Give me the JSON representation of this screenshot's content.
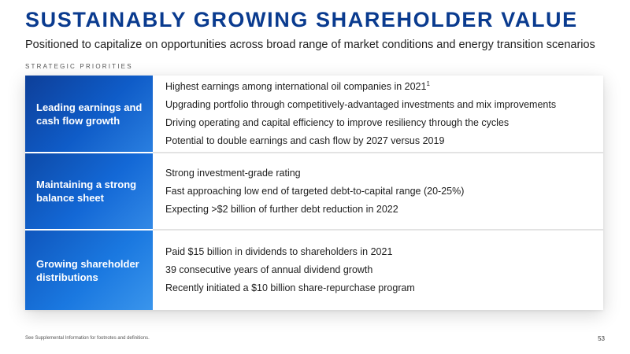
{
  "page": {
    "title": "SUSTAINABLY GROWING SHAREHOLDER VALUE",
    "subtitle": "Positioned to capitalize on opportunities across broad range of market conditions and energy transition scenarios",
    "section_label": "STRATEGIC PRIORITIES",
    "footer_note": "See Supplemental Information for footnotes and definitions.",
    "page_number": "53"
  },
  "colors": {
    "title": "#0a3b8f",
    "header_cell_dark": "#0d3f99",
    "header_cell_light": "#2a7fe0",
    "header_text": "#ffffff"
  },
  "priorities": [
    {
      "heading": "Leading earnings and cash flow growth",
      "bullets": [
        {
          "text": "Highest earnings among international oil companies in 2021",
          "footnote": "1"
        },
        {
          "text": "Upgrading portfolio through competitively-advantaged investments and mix improvements"
        },
        {
          "text": "Driving operating and capital efficiency to improve resiliency through the cycles"
        },
        {
          "text": "Potential to double earnings and cash flow by 2027 versus 2019"
        }
      ]
    },
    {
      "heading": "Maintaining a strong balance sheet",
      "bullets": [
        {
          "text": "Strong investment-grade rating"
        },
        {
          "text": "Fast approaching low end of targeted debt-to-capital range (20-25%)"
        },
        {
          "text": "Expecting >$2 billion of further debt reduction in 2022"
        }
      ]
    },
    {
      "heading": "Growing shareholder distributions",
      "bullets": [
        {
          "text": "Paid $15 billion in dividends to shareholders in 2021"
        },
        {
          "text": "39 consecutive years of annual dividend growth"
        },
        {
          "text": "Recently initiated a $10 billion share-repurchase program"
        }
      ]
    }
  ]
}
